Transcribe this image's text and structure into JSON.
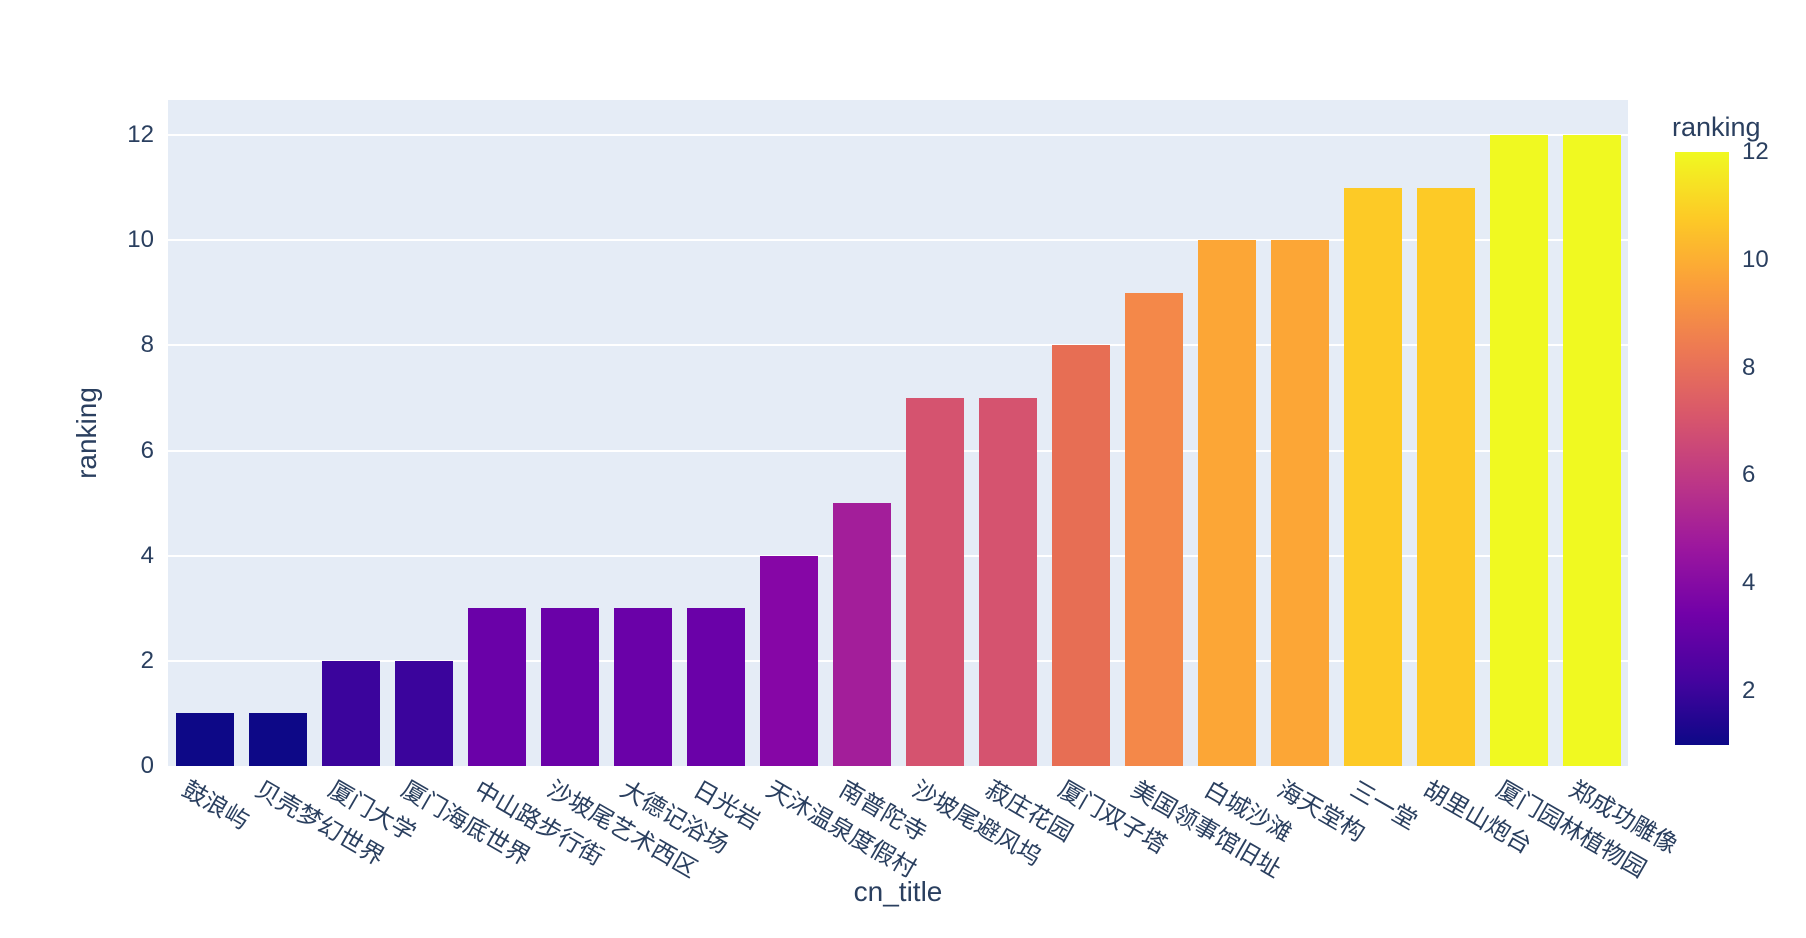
{
  "chart_data": {
    "type": "bar",
    "title": "",
    "xlabel": "cn_title",
    "ylabel": "ranking",
    "categories": [
      "鼓浪屿",
      "贝壳梦幻世界",
      "厦门大学",
      "厦门海底世界",
      "中山路步行街",
      "沙坡尾艺术西区",
      "大德记浴场",
      "日光岩",
      "天沐温泉度假村",
      "南普陀寺",
      "沙坡尾避风坞",
      "菽庄花园",
      "厦门双子塔",
      "美国领事馆旧址",
      "白城沙滩",
      "海天堂构",
      "三一堂",
      "胡里山炮台",
      "厦门园林植物园",
      "郑成功雕像"
    ],
    "values": [
      1,
      1,
      2,
      2,
      3,
      3,
      3,
      3,
      4,
      5,
      7,
      7,
      8,
      9,
      10,
      10,
      11,
      11,
      12,
      12
    ],
    "bar_colors": [
      "#0d0887",
      "#0d0887",
      "#3b049c",
      "#3b049c",
      "#6a01a8",
      "#6a01a8",
      "#6a01a8",
      "#6a01a8",
      "#8606a6",
      "#a31e9a",
      "#d5536f",
      "#d5536f",
      "#e76e54",
      "#f48849",
      "#fca636",
      "#fca636",
      "#fdca26",
      "#fdca26",
      "#f0f921",
      "#f0f921"
    ],
    "yticks": [
      0,
      2,
      4,
      6,
      8,
      10,
      12
    ],
    "ylim": [
      0,
      12.67
    ],
    "grid": true,
    "legend_position": "none",
    "plot_bg_color": "#e5ecf6",
    "grid_color": "#ffffff",
    "text_color": "#2a3f5f",
    "colorbar": {
      "title": "ranking",
      "ticks": [
        2,
        4,
        6,
        8,
        10,
        12
      ],
      "range": [
        1,
        12
      ],
      "colorscale_name": "plasma",
      "stops": [
        "#0d0887",
        "#46039f",
        "#7201a8",
        "#9c179e",
        "#bd3786",
        "#d8576b",
        "#ed7953",
        "#fb9f3a",
        "#fdca26",
        "#f0f921"
      ]
    }
  }
}
